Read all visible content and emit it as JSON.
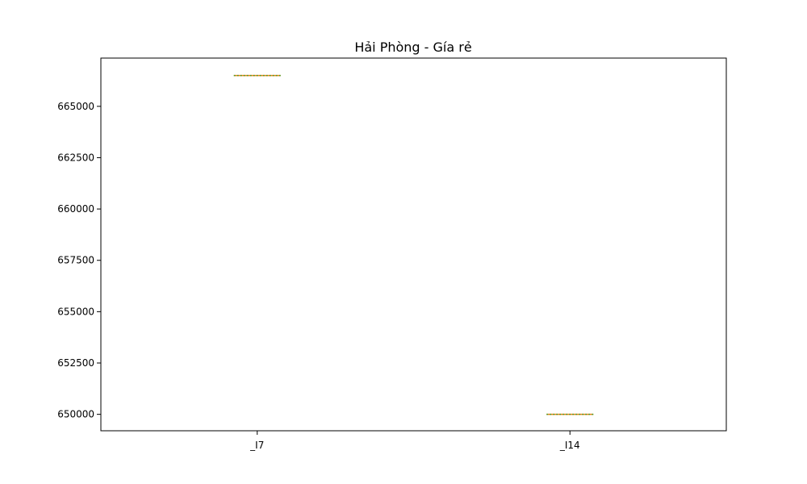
{
  "chart_data": {
    "type": "box",
    "title": "Hải Phòng - Gía rẻ",
    "xlabel": "",
    "ylabel": "",
    "categories": [
      "_I7",
      "_I14"
    ],
    "values": [
      666500,
      650000
    ],
    "ylim": [
      649200,
      667350
    ],
    "yticks": [
      650000,
      652500,
      655000,
      657500,
      660000,
      662500,
      665000
    ],
    "ytick_labels": [
      "650000",
      "652500",
      "655000",
      "657500",
      "660000",
      "662500",
      "665000"
    ],
    "grid": false,
    "colors": {
      "median": "#ff7f0e",
      "flier": "#2ca02c",
      "axis": "#000000"
    }
  }
}
